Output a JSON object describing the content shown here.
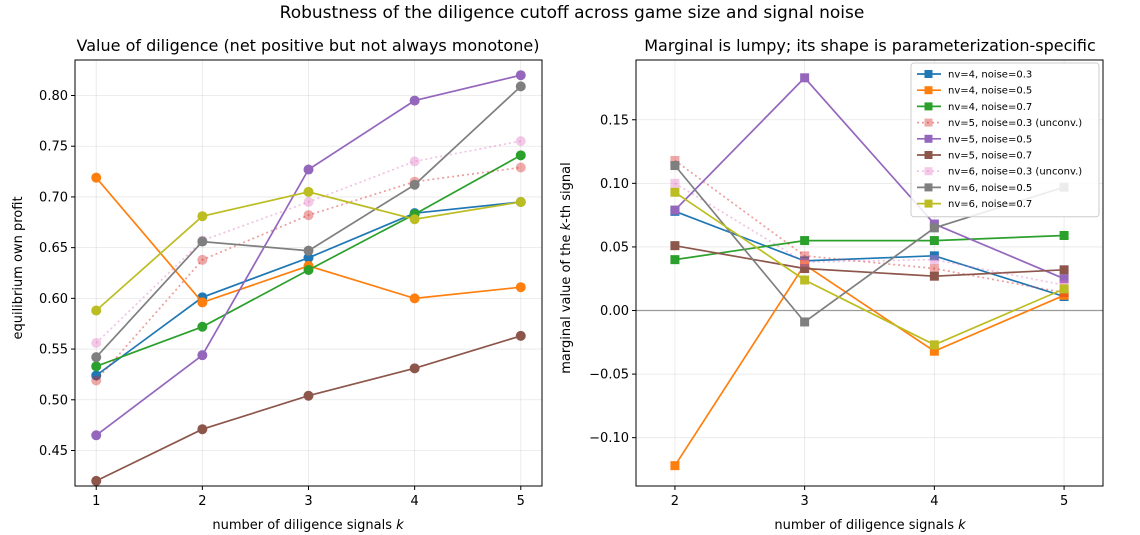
{
  "suptitle": "Robustness of the diligence cutoff across game size and signal noise",
  "chart_data": [
    {
      "type": "line",
      "title": "Value of diligence (net positive but not always monotone)",
      "xlabel": "number of diligence signals k",
      "ylabel": "equilibrium own profit",
      "x": [
        1,
        2,
        3,
        4,
        5
      ],
      "xticks": [
        "1",
        "2",
        "3",
        "4",
        "5"
      ],
      "ylim": [
        0.415,
        0.835
      ],
      "yticks": [
        "0.45",
        "0.50",
        "0.55",
        "0.60",
        "0.65",
        "0.70",
        "0.75",
        "0.80"
      ],
      "ytick_values": [
        0.45,
        0.5,
        0.55,
        0.6,
        0.65,
        0.7,
        0.75,
        0.8
      ],
      "marker": "circle",
      "grid": true,
      "series": [
        {
          "name": "nv=4, noise=0.3",
          "color": "#1f77b4",
          "dotted": false,
          "values": [
            0.524,
            0.601,
            0.64,
            0.684,
            0.695
          ]
        },
        {
          "name": "nv=4, noise=0.5",
          "color": "#ff7f0e",
          "dotted": false,
          "values": [
            0.719,
            0.596,
            0.632,
            0.6,
            0.611
          ]
        },
        {
          "name": "nv=4, noise=0.7",
          "color": "#2ca02c",
          "dotted": false,
          "values": [
            0.533,
            0.572,
            0.628,
            0.683,
            0.741
          ]
        },
        {
          "name": "nv=5, noise=0.3 (unconv.)",
          "color": "#d62728",
          "dotted": true,
          "values": [
            0.519,
            0.638,
            0.682,
            0.715,
            0.729
          ]
        },
        {
          "name": "nv=5, noise=0.5",
          "color": "#9467bd",
          "dotted": false,
          "values": [
            0.465,
            0.544,
            0.727,
            0.795,
            0.82
          ]
        },
        {
          "name": "nv=5, noise=0.7",
          "color": "#8c564b",
          "dotted": false,
          "values": [
            0.42,
            0.471,
            0.504,
            0.531,
            0.563
          ]
        },
        {
          "name": "nv=6, noise=0.3 (unconv.)",
          "color": "#e377c2",
          "dotted": true,
          "values": [
            0.556,
            0.657,
            0.695,
            0.735,
            0.755
          ]
        },
        {
          "name": "nv=6, noise=0.5",
          "color": "#7f7f7f",
          "dotted": false,
          "values": [
            0.542,
            0.656,
            0.647,
            0.712,
            0.809
          ]
        },
        {
          "name": "nv=6, noise=0.7",
          "color": "#bcbd22",
          "dotted": false,
          "values": [
            0.588,
            0.681,
            0.705,
            0.678,
            0.695
          ]
        }
      ]
    },
    {
      "type": "line",
      "title": "Marginal is lumpy; its shape is parameterization-specific",
      "xlabel": "number of diligence signals k",
      "ylabel": "marginal value of the k-th signal",
      "x": [
        2,
        3,
        4,
        5
      ],
      "xticks": [
        "2",
        "3",
        "4",
        "5"
      ],
      "ylim": [
        -0.138,
        0.197
      ],
      "yticks": [
        "−0.10",
        "−0.05",
        "0.00",
        "0.05",
        "0.10",
        "0.15"
      ],
      "ytick_values": [
        -0.1,
        -0.05,
        0.0,
        0.05,
        0.1,
        0.15
      ],
      "marker": "square",
      "zero_line": true,
      "grid": true,
      "legend_loc": "upper right",
      "series": [
        {
          "name": "nv=4, noise=0.3",
          "color": "#1f77b4",
          "dotted": false,
          "values": [
            0.078,
            0.039,
            0.043,
            0.011
          ]
        },
        {
          "name": "nv=4, noise=0.5",
          "color": "#ff7f0e",
          "dotted": false,
          "values": [
            -0.122,
            0.036,
            -0.032,
            0.012
          ]
        },
        {
          "name": "nv=4, noise=0.7",
          "color": "#2ca02c",
          "dotted": false,
          "values": [
            0.04,
            0.055,
            0.055,
            0.059
          ]
        },
        {
          "name": "nv=5, noise=0.3 (unconv.)",
          "color": "#d62728",
          "dotted": true,
          "values": [
            0.118,
            0.043,
            0.033,
            0.014
          ]
        },
        {
          "name": "nv=5, noise=0.5",
          "color": "#9467bd",
          "dotted": false,
          "values": [
            0.079,
            0.183,
            0.068,
            0.025
          ]
        },
        {
          "name": "nv=5, noise=0.7",
          "color": "#8c564b",
          "dotted": false,
          "values": [
            0.051,
            0.033,
            0.027,
            0.032
          ]
        },
        {
          "name": "nv=6, noise=0.3 (unconv.)",
          "color": "#e377c2",
          "dotted": true,
          "values": [
            0.1,
            0.038,
            0.04,
            0.02
          ]
        },
        {
          "name": "nv=6, noise=0.5",
          "color": "#7f7f7f",
          "dotted": false,
          "values": [
            0.114,
            -0.009,
            0.065,
            0.097
          ]
        },
        {
          "name": "nv=6, noise=0.7",
          "color": "#bcbd22",
          "dotted": false,
          "values": [
            0.093,
            0.024,
            -0.027,
            0.017
          ]
        }
      ]
    }
  ]
}
